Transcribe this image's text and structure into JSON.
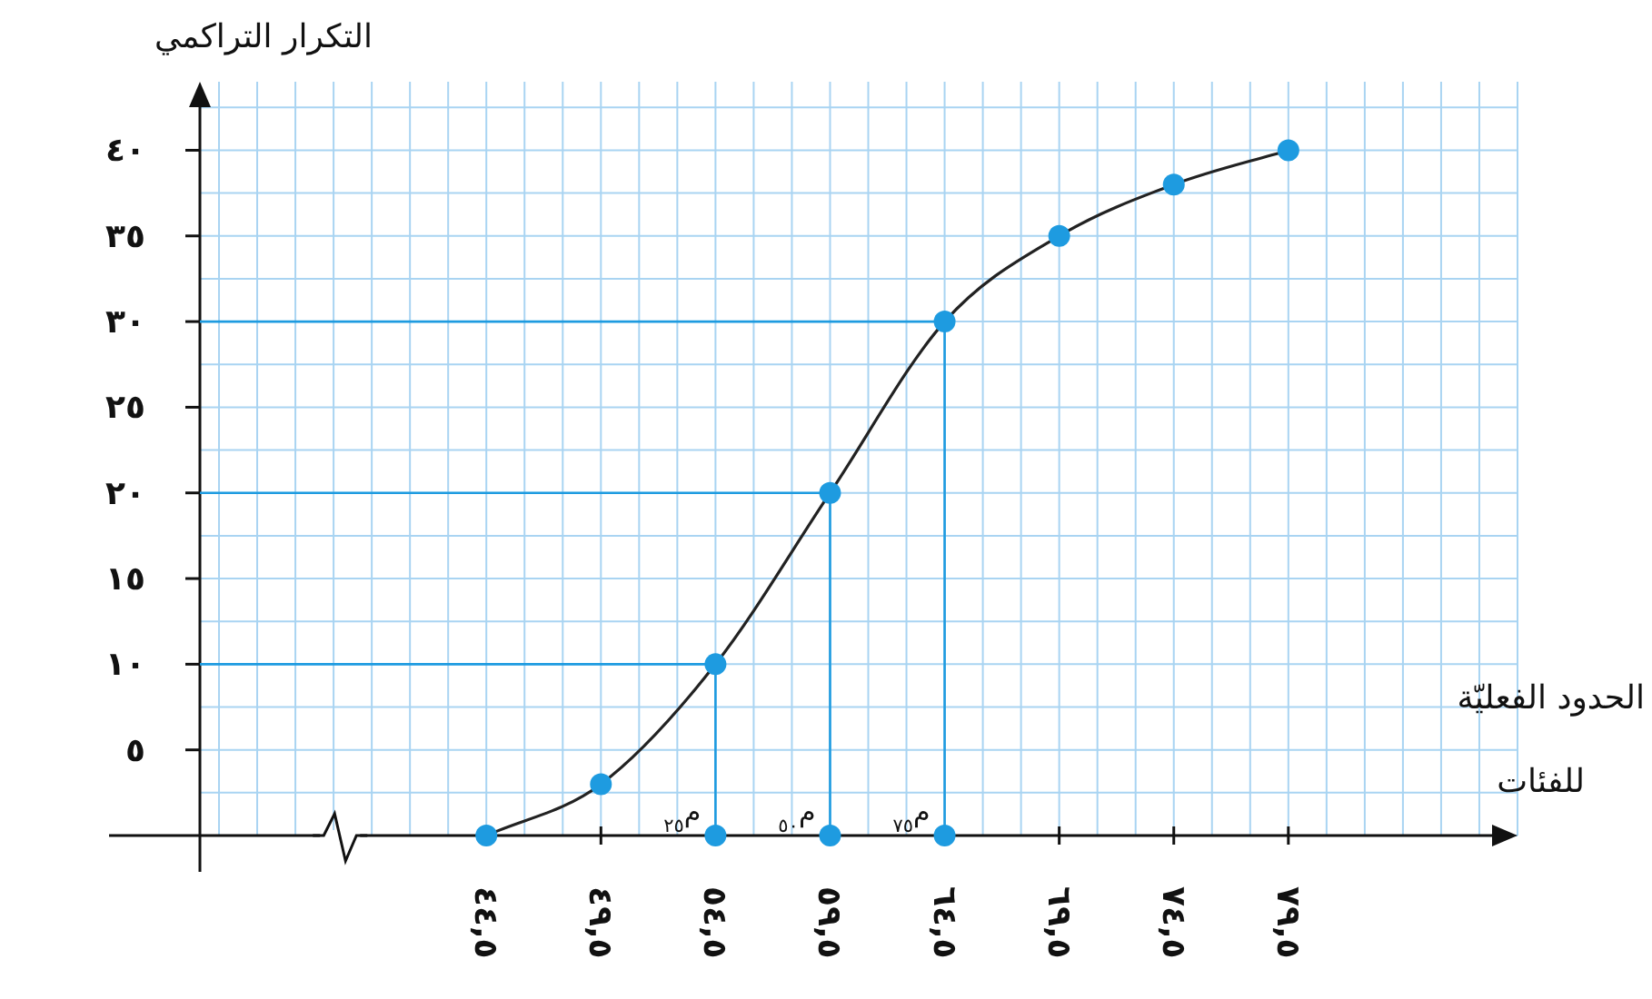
{
  "chart_data": {
    "type": "line",
    "ylabel": "التكرار التراكمي",
    "xlabel": "الحدود الفعليّة للفئات",
    "xlim": [
      32,
      89.5
    ],
    "ylim": [
      0,
      44
    ],
    "xticks": [
      {
        "value": 44.5,
        "label": "٤٤,٥"
      },
      {
        "value": 49.5,
        "label": "٤٩,٥"
      },
      {
        "value": 54.5,
        "label": "٥٤,٥"
      },
      {
        "value": 59.5,
        "label": "٥٩,٥"
      },
      {
        "value": 64.5,
        "label": "٦٤,٥"
      },
      {
        "value": 69.5,
        "label": "٦٩,٥"
      },
      {
        "value": 74.5,
        "label": "٧٤,٥"
      },
      {
        "value": 79.5,
        "label": "٧٩,٥"
      }
    ],
    "yticks": [
      {
        "value": 5,
        "label": "٥"
      },
      {
        "value": 10,
        "label": "١٠"
      },
      {
        "value": 15,
        "label": "١٥"
      },
      {
        "value": 20,
        "label": "٢٠"
      },
      {
        "value": 25,
        "label": "٢٥"
      },
      {
        "value": 30,
        "label": "٣٠"
      },
      {
        "value": 35,
        "label": "٣٥"
      },
      {
        "value": 40,
        "label": "٤٠"
      }
    ],
    "grid": true,
    "series": [
      {
        "type": "line",
        "marker": "none",
        "color": "#1e9be0",
        "x": [
          32,
          54.5,
          54.5
        ],
        "values": [
          10,
          10,
          0
        ]
      },
      {
        "type": "line",
        "marker": "none",
        "color": "#1e9be0",
        "x": [
          32,
          59.5,
          59.5
        ],
        "values": [
          20,
          20,
          0
        ]
      },
      {
        "type": "line",
        "marker": "none",
        "color": "#1e9be0",
        "x": [
          32,
          64.5,
          64.5
        ],
        "values": [
          30,
          30,
          0
        ]
      },
      {
        "marker": "circle",
        "color": "#222222",
        "colors": [
          "#1e9be0",
          "#1e9be0",
          "#1e9be0",
          "#1e9be0",
          "#1e9be0",
          "#1e9be0",
          "#1e9be0",
          "#1e9be0"
        ],
        "x": [
          44.5,
          49.5,
          54.5,
          59.5,
          64.5,
          69.5,
          74.5,
          79.5
        ],
        "values": [
          0,
          3,
          10,
          20,
          30,
          35,
          38,
          40
        ]
      },
      {
        "type": "scatter",
        "marker": "circle",
        "color": "#1e9be0",
        "x": [
          54.5,
          59.5,
          64.5
        ],
        "values": [
          0,
          0,
          0
        ]
      }
    ],
    "annotations": [
      {
        "text": "م$_{٢٥}$",
        "x": 54.5,
        "y": 0
      },
      {
        "text": "م$_{٥٠}$",
        "x": 59.5,
        "y": 0
      },
      {
        "text": "م$_{٧٥}$",
        "x": 64.5,
        "y": 0
      }
    ]
  }
}
